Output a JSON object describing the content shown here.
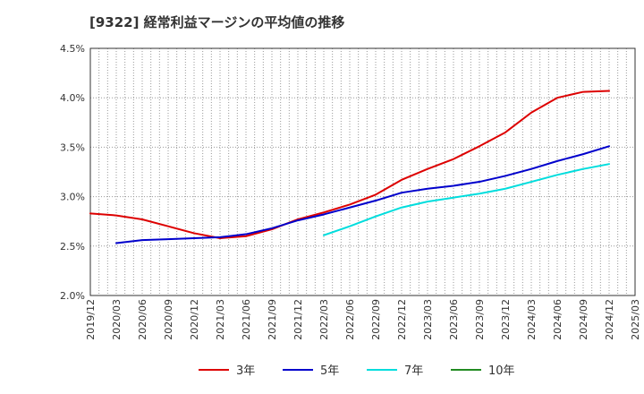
{
  "chart_data": {
    "type": "line",
    "title": "[9322]  経常利益マージンの平均値の推移",
    "xlabel": "",
    "ylabel": "",
    "x_ticks": [
      "2019/12",
      "2020/03",
      "2020/06",
      "2020/09",
      "2020/12",
      "2021/03",
      "2021/06",
      "2021/09",
      "2021/12",
      "2022/03",
      "2022/06",
      "2022/09",
      "2022/12",
      "2023/03",
      "2023/06",
      "2023/09",
      "2023/12",
      "2024/03",
      "2024/06",
      "2024/09",
      "2024/12",
      "2025/03"
    ],
    "y_ticks": [
      "2.0%",
      "2.5%",
      "3.0%",
      "3.5%",
      "4.0%",
      "4.5%"
    ],
    "ylim": [
      2.0,
      4.5
    ],
    "grid": true,
    "legend_position": "bottom",
    "series": [
      {
        "name": "3年",
        "color": "#dd0000",
        "x": [
          "2019/12",
          "2020/03",
          "2020/06",
          "2020/09",
          "2020/12",
          "2021/03",
          "2021/06",
          "2021/09",
          "2021/12",
          "2022/03",
          "2022/06",
          "2022/09",
          "2022/12",
          "2023/03",
          "2023/06",
          "2023/09",
          "2023/12",
          "2024/03",
          "2024/06",
          "2024/09",
          "2024/12"
        ],
        "values": [
          2.83,
          2.81,
          2.77,
          2.7,
          2.63,
          2.58,
          2.6,
          2.67,
          2.77,
          2.84,
          2.92,
          3.02,
          3.17,
          3.28,
          3.38,
          3.51,
          3.65,
          3.85,
          4.0,
          4.06,
          4.07
        ]
      },
      {
        "name": "5年",
        "color": "#0000cc",
        "x": [
          "2020/03",
          "2020/06",
          "2020/09",
          "2020/12",
          "2021/03",
          "2021/06",
          "2021/09",
          "2021/12",
          "2022/03",
          "2022/06",
          "2022/09",
          "2022/12",
          "2023/03",
          "2023/06",
          "2023/09",
          "2023/12",
          "2024/03",
          "2024/06",
          "2024/09",
          "2024/12"
        ],
        "values": [
          2.53,
          2.56,
          2.57,
          2.58,
          2.59,
          2.62,
          2.68,
          2.76,
          2.82,
          2.89,
          2.96,
          3.04,
          3.08,
          3.11,
          3.15,
          3.21,
          3.28,
          3.36,
          3.43,
          3.51
        ]
      },
      {
        "name": "7年",
        "color": "#00dddd",
        "x": [
          "2022/03",
          "2022/06",
          "2022/09",
          "2022/12",
          "2023/03",
          "2023/06",
          "2023/09",
          "2023/12",
          "2024/03",
          "2024/06",
          "2024/09",
          "2024/12"
        ],
        "values": [
          2.61,
          2.7,
          2.8,
          2.89,
          2.95,
          2.99,
          3.03,
          3.08,
          3.15,
          3.22,
          3.28,
          3.33
        ]
      },
      {
        "name": "10年",
        "color": "#228b22",
        "x": [],
        "values": []
      }
    ]
  }
}
